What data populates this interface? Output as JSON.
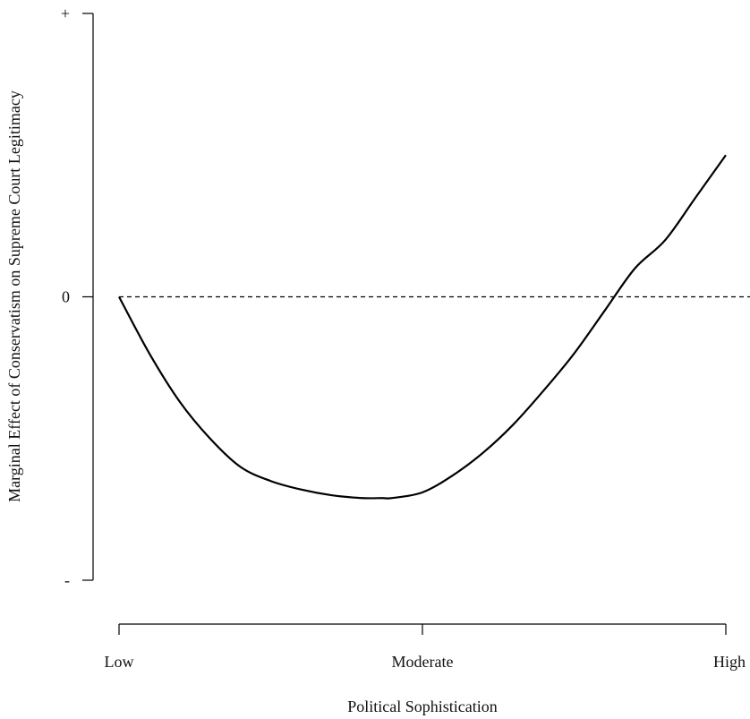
{
  "chart_data": {
    "type": "line",
    "title": "",
    "xlabel": "Political Sophistication",
    "ylabel": "Marginal Effect of Conservatism on Supreme Court Legitimacy",
    "x_ticks": [
      {
        "value": 0,
        "label": "Low"
      },
      {
        "value": 0.5,
        "label": "Moderate"
      },
      {
        "value": 1,
        "label": "High"
      }
    ],
    "y_ticks": [
      {
        "value": -1,
        "label": "-"
      },
      {
        "value": 0,
        "label": "0"
      },
      {
        "value": 1,
        "label": "+"
      }
    ],
    "xlim": [
      0,
      1
    ],
    "ylim": [
      -1,
      1
    ],
    "reference_line": {
      "y": 0,
      "style": "dashed"
    },
    "grid": false,
    "legend": "none",
    "series": [
      {
        "values_x": [
          0,
          0.05,
          0.1,
          0.15,
          0.2,
          0.25,
          0.3,
          0.35,
          0.4,
          0.434,
          0.45,
          0.5,
          0.55,
          0.6,
          0.65,
          0.7,
          0.75,
          0.8,
          0.85,
          0.88,
          0.9,
          0.95,
          1
        ],
        "values_y": [
          0,
          -0.2,
          -0.37,
          -0.5,
          -0.6,
          -0.65,
          -0.68,
          -0.7,
          -0.71,
          -0.71,
          -0.71,
          -0.69,
          -0.63,
          -0.55,
          -0.45,
          -0.33,
          -0.2,
          -0.05,
          0.1,
          0,
          0.2,
          0.35,
          0.5
        ]
      }
    ]
  }
}
